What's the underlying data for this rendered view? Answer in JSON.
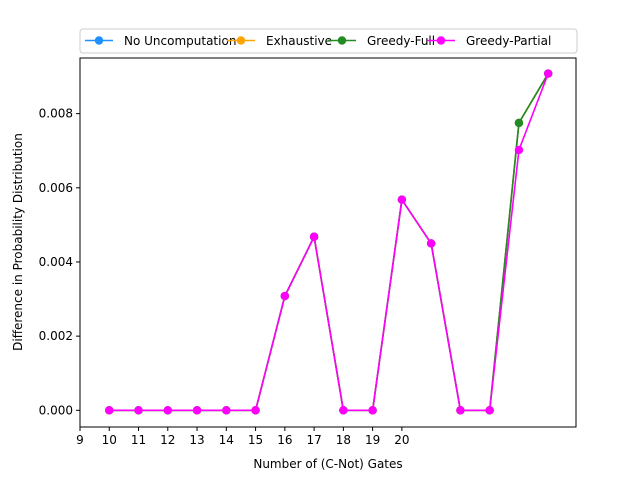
{
  "chart_data": {
    "type": "line",
    "title": "",
    "xlabel": "Number of (C-Not) Gates",
    "ylabel": "Difference in Probability Distribution",
    "x_ticks": [
      9,
      10,
      11,
      12,
      13,
      14,
      15,
      16,
      17,
      18,
      19,
      20
    ],
    "y_ticks": [
      "0.000",
      "0.002",
      "0.004",
      "0.006",
      "0.008"
    ],
    "xlim": [
      9,
      25.95
    ],
    "ylim": [
      -0.00045,
      0.0095
    ],
    "grid": false,
    "legend_position": "top",
    "x": [
      10,
      11,
      12,
      13,
      14,
      15,
      16,
      17,
      18,
      19,
      20,
      21,
      22,
      23,
      24,
      25
    ],
    "series": [
      {
        "name": "No Uncomputation",
        "color": "#1e90ff",
        "values": [
          0,
          0,
          0,
          0,
          0,
          0,
          0.00308,
          0.00468,
          0,
          0,
          0.00568,
          0.0045,
          0,
          0,
          0.00775,
          0.00908
        ]
      },
      {
        "name": "Exhaustive",
        "color": "#ffa500",
        "values": [
          0,
          0,
          0,
          0,
          0,
          0,
          0.00308,
          0.00468,
          0,
          0,
          0.00568,
          0.0045,
          0,
          0,
          0.00775,
          0.00908
        ]
      },
      {
        "name": "Greedy-Full",
        "color": "#228b22",
        "values": [
          0,
          0,
          0,
          0,
          0,
          0,
          0.00308,
          0.00468,
          0,
          0,
          0.00568,
          0.0045,
          0,
          0,
          0.00775,
          0.00908
        ]
      },
      {
        "name": "Greedy-Partial",
        "color": "#ff00ff",
        "values": [
          0,
          0,
          0,
          0,
          0,
          0,
          0.00308,
          0.00468,
          0,
          0,
          0.00568,
          0.0045,
          0,
          0,
          0.00702,
          0.00908
        ]
      }
    ]
  }
}
